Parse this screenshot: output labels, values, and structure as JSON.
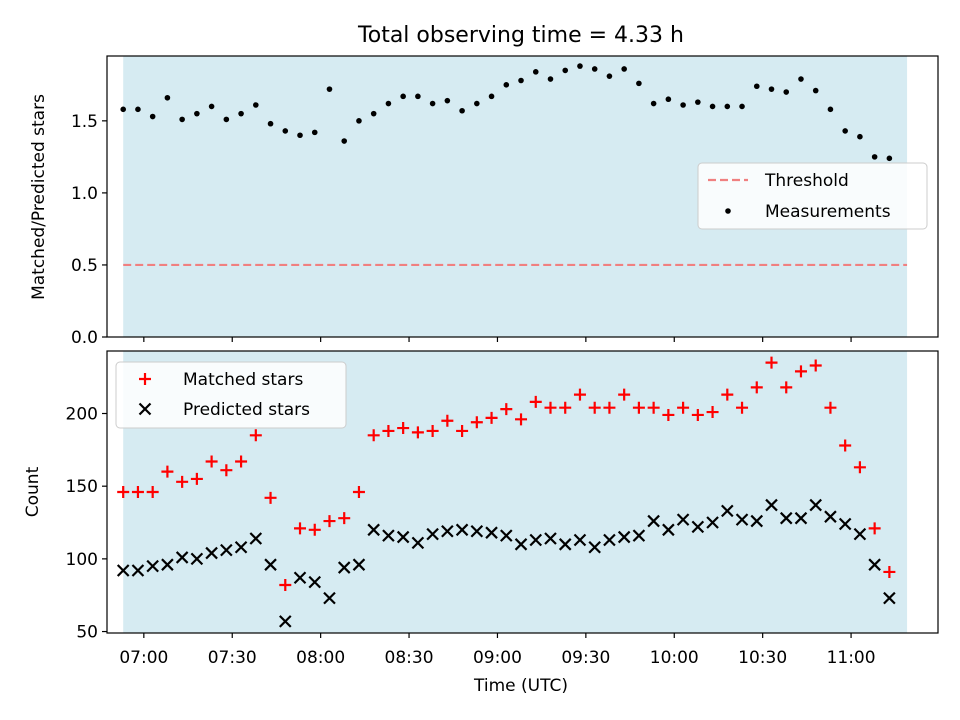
{
  "title": "Total observing time = 4.33 h",
  "colors": {
    "span_fill": "#add8e6",
    "threshold": "#f08080",
    "measurements": "#000000",
    "matched": "#ff0000",
    "predicted": "#000000",
    "axes": "#000000",
    "background": "#ffffff"
  },
  "chart_data": [
    {
      "type": "scatter",
      "panel": "top",
      "ylabel": "Matched/Predicted stars",
      "xlim": [
        "06:53",
        "11:19"
      ],
      "ylim": [
        0,
        1.95
      ],
      "yticks": [
        0.0,
        0.5,
        1.0,
        1.5
      ],
      "ytick_labels": [
        "0.0",
        "0.5",
        "1.0",
        "1.5"
      ],
      "shaded_span": [
        "06:53",
        "11:19"
      ],
      "legend": {
        "placement": "center-right",
        "entries": [
          "Threshold",
          "Measurements"
        ]
      },
      "threshold": {
        "name": "Threshold",
        "value": 0.5,
        "style": "dashed"
      },
      "series": [
        {
          "name": "Measurements",
          "marker": "dot",
          "x": [
            "06:53",
            "06:58",
            "07:03",
            "07:08",
            "07:13",
            "07:18",
            "07:23",
            "07:28",
            "07:33",
            "07:38",
            "07:43",
            "07:48",
            "07:53",
            "07:58",
            "08:03",
            "08:08",
            "08:13",
            "08:18",
            "08:23",
            "08:28",
            "08:33",
            "08:38",
            "08:43",
            "08:48",
            "08:53",
            "08:58",
            "09:03",
            "09:08",
            "09:13",
            "09:18",
            "09:23",
            "09:28",
            "09:33",
            "09:38",
            "09:43",
            "09:48",
            "09:53",
            "09:58",
            "10:03",
            "10:08",
            "10:13",
            "10:18",
            "10:23",
            "10:28",
            "10:33",
            "10:38",
            "10:43",
            "10:48",
            "10:53",
            "10:58",
            "11:03",
            "11:08",
            "11:13"
          ],
          "values": [
            1.58,
            1.58,
            1.53,
            1.66,
            1.51,
            1.55,
            1.6,
            1.51,
            1.55,
            1.61,
            1.48,
            1.43,
            1.4,
            1.42,
            1.72,
            1.36,
            1.5,
            1.55,
            1.62,
            1.67,
            1.67,
            1.62,
            1.64,
            1.57,
            1.62,
            1.67,
            1.75,
            1.78,
            1.84,
            1.79,
            1.85,
            1.88,
            1.86,
            1.81,
            1.86,
            1.76,
            1.62,
            1.65,
            1.61,
            1.63,
            1.6,
            1.6,
            1.6,
            1.74,
            1.72,
            1.7,
            1.79,
            1.71,
            1.58,
            1.43,
            1.39,
            1.25,
            1.24
          ]
        }
      ]
    },
    {
      "type": "scatter",
      "panel": "bottom",
      "xlabel": "Time (UTC)",
      "ylabel": "Count",
      "xlim": [
        "06:53",
        "11:19"
      ],
      "ylim": [
        49,
        243
      ],
      "yticks": [
        50,
        100,
        150,
        200
      ],
      "ytick_labels": [
        "50",
        "100",
        "150",
        "200"
      ],
      "xticks": [
        "07:00",
        "07:30",
        "08:00",
        "08:30",
        "09:00",
        "09:30",
        "10:00",
        "10:30",
        "11:00"
      ],
      "shaded_span": [
        "06:53",
        "11:19"
      ],
      "legend": {
        "placement": "top-left",
        "entries": [
          "Matched stars",
          "Predicted stars"
        ]
      },
      "series": [
        {
          "name": "Matched stars",
          "marker": "plus",
          "x": [
            "06:53",
            "06:58",
            "07:03",
            "07:08",
            "07:13",
            "07:18",
            "07:23",
            "07:28",
            "07:33",
            "07:38",
            "07:43",
            "07:48",
            "07:53",
            "07:58",
            "08:03",
            "08:08",
            "08:13",
            "08:18",
            "08:23",
            "08:28",
            "08:33",
            "08:38",
            "08:43",
            "08:48",
            "08:53",
            "08:58",
            "09:03",
            "09:08",
            "09:13",
            "09:18",
            "09:23",
            "09:28",
            "09:33",
            "09:38",
            "09:43",
            "09:48",
            "09:53",
            "09:58",
            "10:03",
            "10:08",
            "10:13",
            "10:18",
            "10:23",
            "10:28",
            "10:33",
            "10:38",
            "10:43",
            "10:48",
            "10:53",
            "10:58",
            "11:03",
            "11:08",
            "11:13"
          ],
          "values": [
            146,
            146,
            146,
            160,
            153,
            155,
            167,
            161,
            167,
            185,
            142,
            82,
            121,
            120,
            126,
            128,
            146,
            185,
            188,
            190,
            187,
            188,
            195,
            188,
            194,
            197,
            203,
            196,
            208,
            204,
            204,
            213,
            204,
            204,
            213,
            204,
            204,
            199,
            204,
            199,
            201,
            213,
            204,
            218,
            235,
            218,
            229,
            233,
            204,
            178,
            163,
            121,
            91
          ]
        },
        {
          "name": "Predicted stars",
          "marker": "x",
          "x": [
            "06:53",
            "06:58",
            "07:03",
            "07:08",
            "07:13",
            "07:18",
            "07:23",
            "07:28",
            "07:33",
            "07:38",
            "07:43",
            "07:48",
            "07:53",
            "07:58",
            "08:03",
            "08:08",
            "08:13",
            "08:18",
            "08:23",
            "08:28",
            "08:33",
            "08:38",
            "08:43",
            "08:48",
            "08:53",
            "08:58",
            "09:03",
            "09:08",
            "09:13",
            "09:18",
            "09:23",
            "09:28",
            "09:33",
            "09:38",
            "09:43",
            "09:48",
            "09:53",
            "09:58",
            "10:03",
            "10:08",
            "10:13",
            "10:18",
            "10:23",
            "10:28",
            "10:33",
            "10:38",
            "10:43",
            "10:48",
            "10:53",
            "10:58",
            "11:03",
            "11:08",
            "11:13"
          ],
          "values": [
            92,
            92,
            95,
            96,
            101,
            100,
            104,
            106,
            108,
            114,
            96,
            57,
            87,
            84,
            73,
            94,
            96,
            120,
            116,
            115,
            111,
            117,
            119,
            120,
            119,
            118,
            116,
            110,
            113,
            114,
            110,
            113,
            108,
            113,
            115,
            116,
            126,
            120,
            127,
            122,
            125,
            133,
            127,
            126,
            137,
            128,
            128,
            137,
            129,
            124,
            117,
            96,
            73
          ]
        }
      ]
    }
  ]
}
